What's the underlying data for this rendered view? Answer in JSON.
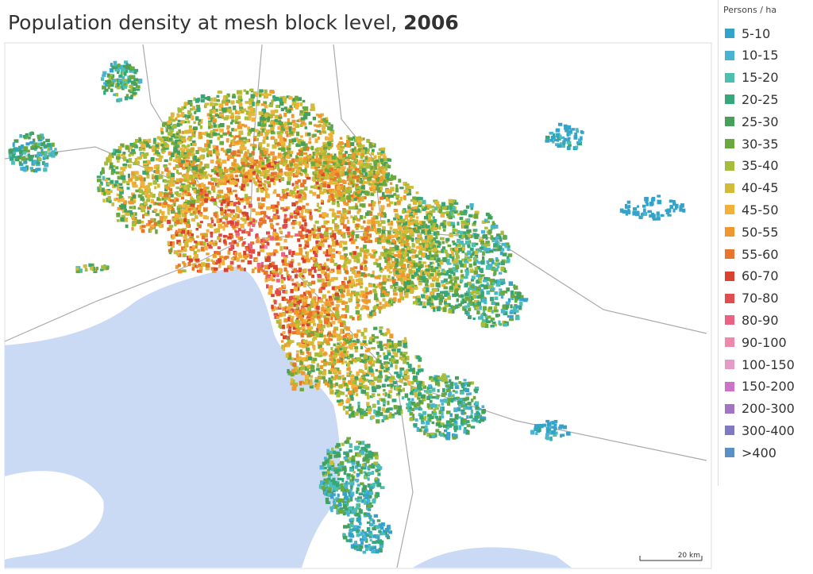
{
  "title": {
    "text": "Population density at mesh block level, ",
    "year": "2006"
  },
  "legend": {
    "title": "Persons / ha",
    "items": [
      {
        "label": "5-10",
        "color": "#35a3c9"
      },
      {
        "label": "10-15",
        "color": "#4ab3d1"
      },
      {
        "label": "15-20",
        "color": "#4dbfb1"
      },
      {
        "label": "20-25",
        "color": "#34a87a"
      },
      {
        "label": "25-30",
        "color": "#46a05c"
      },
      {
        "label": "30-35",
        "color": "#6ba83d"
      },
      {
        "label": "35-40",
        "color": "#a6bd3a"
      },
      {
        "label": "40-45",
        "color": "#d2bb38"
      },
      {
        "label": "45-50",
        "color": "#f1b13a"
      },
      {
        "label": "50-55",
        "color": "#ef982d"
      },
      {
        "label": "55-60",
        "color": "#e8762a"
      },
      {
        "label": "60-70",
        "color": "#d8432f"
      },
      {
        "label": "70-80",
        "color": "#e34c4f"
      },
      {
        "label": "80-90",
        "color": "#ec6080"
      },
      {
        "label": "90-100",
        "color": "#ef88a9"
      },
      {
        "label": "100-150",
        "color": "#e69bc6"
      },
      {
        "label": "150-200",
        "color": "#cc72c9"
      },
      {
        "label": "200-300",
        "color": "#a275c4"
      },
      {
        "label": "300-400",
        "color": "#7e79c2"
      },
      {
        "label": ">400",
        "color": "#5b8fc6"
      }
    ]
  },
  "scale_bar": "20 km"
}
